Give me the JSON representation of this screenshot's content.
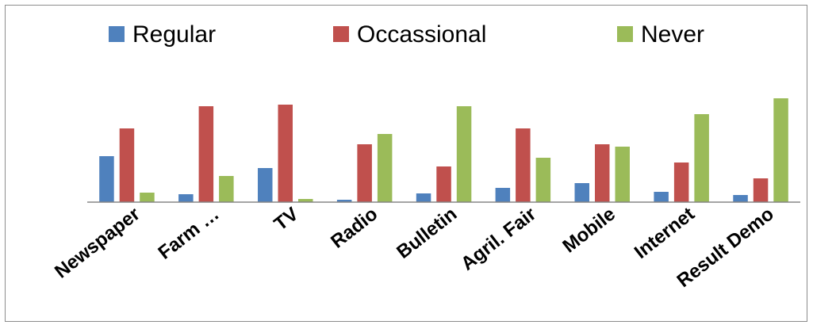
{
  "chart_data": {
    "type": "bar",
    "title": "",
    "xlabel": "",
    "ylabel": "",
    "categories": [
      "Newspaper",
      "Farm …",
      "TV",
      "Radio",
      "Bulletin",
      "Agril. Fair",
      "Mobile",
      "Internet",
      "Result Demo"
    ],
    "series": [
      {
        "name": "Regular",
        "color": "#4F81BD",
        "values": [
          29,
          5,
          21.5,
          1.5,
          5.5,
          9,
          12,
          6.5,
          4.5
        ]
      },
      {
        "name": "Occassional",
        "color": "#C0504D",
        "values": [
          46.5,
          60.5,
          61.5,
          36.5,
          22.5,
          46.5,
          36.5,
          25,
          15
        ]
      },
      {
        "name": "Never",
        "color": "#9BBB59",
        "values": [
          6,
          16.5,
          2,
          43,
          60.5,
          28,
          35,
          55.5,
          65.5
        ]
      }
    ],
    "ylim": [
      0,
      70
    ],
    "grid": false,
    "legend": "top"
  }
}
